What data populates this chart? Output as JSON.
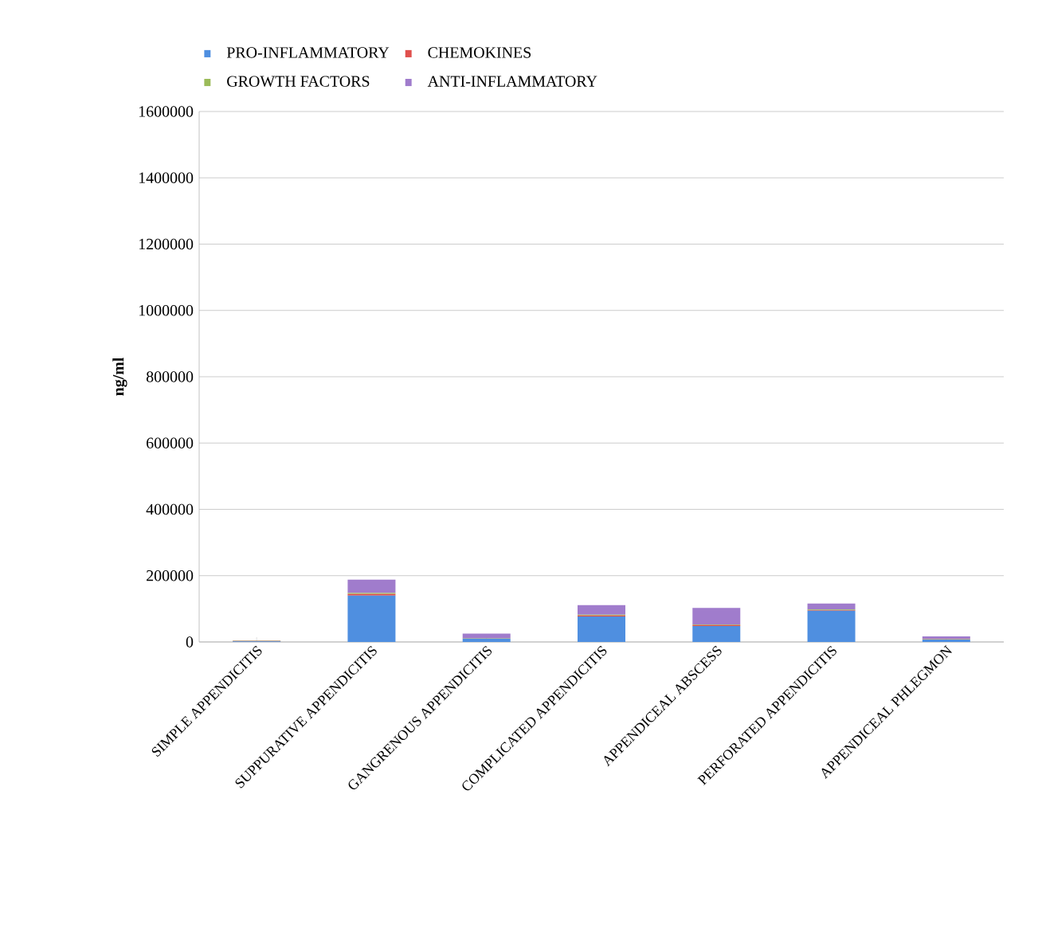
{
  "chart_data": {
    "type": "bar",
    "stacked": true,
    "ylabel": "ng/ml",
    "categories": [
      "SIMPLE APPENDICITIS",
      "SUPPURATIVE APPENDICITIS",
      "GANGRENOUS APPENDICITIS",
      "COMPLICATED APPENDICITIS",
      "APPENDICEAL ABSCESS",
      "PERFORATED APPENDICITIS",
      "APPENDICEAL PHLEGMON"
    ],
    "series": [
      {
        "name": "PRO-INFLAMMATORY",
        "color": "#4f8fe0",
        "values": [
          2000,
          140000,
          10000,
          77000,
          48000,
          94000,
          7000
        ]
      },
      {
        "name": "CHEMOKINES",
        "color": "#e0504d",
        "values": [
          1000,
          5000,
          1000,
          3000,
          3000,
          2000,
          1000
        ]
      },
      {
        "name": "GROWTH FACTORS",
        "color": "#9bbb59",
        "values": [
          1000,
          3000,
          1000,
          2000,
          2000,
          2000,
          1000
        ]
      },
      {
        "name": "ANTI-INFLAMMATORY",
        "color": "#a07ccc",
        "values": [
          1000,
          40000,
          13000,
          29000,
          50000,
          18000,
          8000
        ]
      }
    ],
    "ylim": [
      0,
      1600000
    ],
    "yticks": [
      0,
      200000,
      400000,
      600000,
      800000,
      1000000,
      1200000,
      1400000,
      1600000
    ],
    "grid": "y",
    "legend": "top"
  }
}
